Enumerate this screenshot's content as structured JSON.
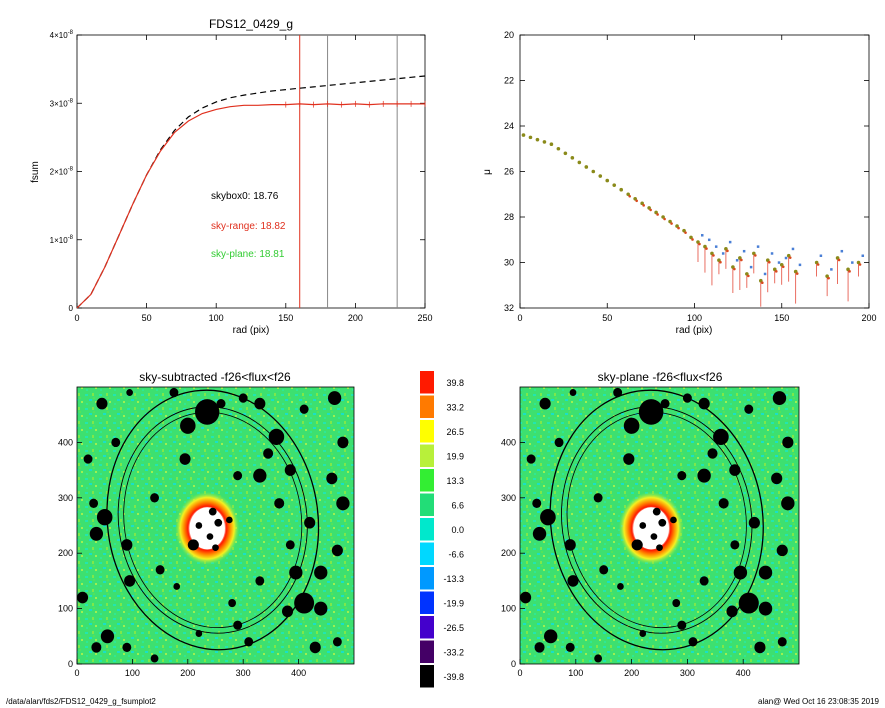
{
  "chart_data": [
    {
      "type": "line",
      "title": "FDS12_0429_g",
      "xlabel": "rad (pix)",
      "ylabel": "fsum",
      "xlim": [
        0,
        250
      ],
      "ylim": [
        0,
        4e-08
      ],
      "xticks": [
        0,
        50,
        100,
        150,
        200,
        250
      ],
      "yticks": [
        {
          "value": 0,
          "mantissa": "0",
          "exp": ""
        },
        {
          "value": 1e-08,
          "mantissa": "1×10",
          "exp": "-8"
        },
        {
          "value": 2e-08,
          "mantissa": "2×10",
          "exp": "-8"
        },
        {
          "value": 3e-08,
          "mantissa": "3×10",
          "exp": "-8"
        },
        {
          "value": 4e-08,
          "mantissa": "4×10",
          "exp": "-8"
        }
      ],
      "grid": false,
      "vlines": [
        {
          "x": 160,
          "color": "#e0301e"
        },
        {
          "x": 180,
          "color": "#888888"
        },
        {
          "x": 230,
          "color": "#888888"
        }
      ],
      "annotations": [
        {
          "text": "skybox0: 18.76",
          "color": "#000000"
        },
        {
          "text": "sky-range: 18.82",
          "color": "#e0301e"
        },
        {
          "text": "sky-plane: 18.81",
          "color": "#33cc33"
        }
      ],
      "series": [
        {
          "style": "dashed",
          "color": "#000000",
          "x": [
            0,
            10,
            20,
            30,
            40,
            50,
            60,
            70,
            80,
            90,
            100,
            110,
            120,
            130,
            140,
            150,
            160,
            170,
            180,
            190,
            200,
            210,
            220,
            230,
            240,
            250
          ],
          "y": [
            0,
            2e-09,
            6e-09,
            1.06e-08,
            1.52e-08,
            1.95e-08,
            2.32e-08,
            2.6e-08,
            2.8e-08,
            2.93e-08,
            3.02e-08,
            3.08e-08,
            3.12e-08,
            3.15e-08,
            3.18e-08,
            3.2e-08,
            3.22e-08,
            3.24e-08,
            3.26e-08,
            3.28e-08,
            3.3e-08,
            3.32e-08,
            3.34e-08,
            3.36e-08,
            3.38e-08,
            3.4e-08
          ]
        },
        {
          "style": "solid",
          "color": "#e0301e",
          "x": [
            0,
            10,
            20,
            30,
            40,
            50,
            60,
            70,
            80,
            90,
            100,
            110,
            120,
            130,
            140,
            150,
            160,
            170,
            180,
            190,
            200,
            210,
            220,
            230,
            240,
            250
          ],
          "y": [
            0,
            2e-09,
            6e-09,
            1.06e-08,
            1.52e-08,
            1.95e-08,
            2.3e-08,
            2.57e-08,
            2.74e-08,
            2.85e-08,
            2.91e-08,
            2.95e-08,
            2.97e-08,
            2.97e-08,
            2.98e-08,
            2.98e-08,
            2.99e-08,
            2.98e-08,
            2.99e-08,
            2.98e-08,
            2.99e-08,
            2.98e-08,
            2.99e-08,
            2.99e-08,
            2.99e-08,
            2.99e-08
          ]
        }
      ]
    },
    {
      "type": "scatter",
      "title": "",
      "xlabel": "rad (pix)",
      "ylabel": "μ",
      "xlim": [
        0,
        200
      ],
      "ylim": [
        32,
        20
      ],
      "xticks": [
        0,
        50,
        100,
        150,
        200
      ],
      "yticks": [
        20,
        22,
        24,
        26,
        28,
        30,
        32
      ],
      "grid": false,
      "series": [
        {
          "color": "#8a8a1a",
          "x": [
            2,
            6,
            10,
            14,
            18,
            22,
            26,
            30,
            34,
            38,
            42,
            46,
            50,
            54,
            58,
            62,
            66,
            70,
            74,
            78,
            82,
            86,
            90,
            94,
            98,
            102,
            106,
            110,
            114,
            118,
            122,
            126,
            130,
            134,
            138,
            142,
            146,
            150,
            154,
            158,
            170,
            176,
            182,
            188,
            194
          ],
          "y": [
            24.4,
            24.5,
            24.6,
            24.7,
            24.8,
            25.0,
            25.2,
            25.4,
            25.6,
            25.8,
            26.0,
            26.2,
            26.4,
            26.6,
            26.8,
            27.0,
            27.2,
            27.4,
            27.6,
            27.8,
            28.0,
            28.2,
            28.4,
            28.6,
            28.9,
            29.1,
            29.3,
            29.6,
            29.9,
            29.4,
            30.2,
            29.8,
            30.5,
            29.6,
            30.8,
            29.9,
            30.3,
            30.1,
            29.7,
            30.4,
            30.0,
            30.6,
            29.8,
            30.3,
            30.0
          ]
        }
      ]
    },
    {
      "type": "heatmap",
      "title": "sky-subtracted -f26<flux<f26",
      "xlim": [
        0,
        500
      ],
      "ylim": [
        0,
        500
      ],
      "xticks": [
        0,
        100,
        200,
        300,
        400
      ],
      "yticks": [
        0,
        100,
        200,
        300,
        400
      ]
    },
    {
      "type": "heatmap",
      "title": "sky-plane -f26<flux<f26",
      "xlim": [
        0,
        500
      ],
      "ylim": [
        0,
        500
      ],
      "xticks": [
        0,
        100,
        200,
        300,
        400
      ],
      "yticks": [
        0,
        100,
        200,
        300,
        400
      ]
    }
  ],
  "colorbar": {
    "labels": [
      "39.8",
      "33.2",
      "26.5",
      "19.9",
      "13.3",
      "6.6",
      "0.0",
      "-6.6",
      "-13.3",
      "-19.9",
      "-26.5",
      "-33.2",
      "-39.8"
    ],
    "colors": [
      "#ff1a00",
      "#ff7a00",
      "#ffff00",
      "#b8f03a",
      "#33ee33",
      "#22dd77",
      "#00e8cc",
      "#00d8ff",
      "#0099ff",
      "#0033ff",
      "#4400cc",
      "#440066",
      "#000000"
    ]
  },
  "footer": {
    "left": "/data/alan/fds2/FDS12_0429_g_fsumplot2",
    "right": "alan@  Wed Oct 16 23:08:35 2019"
  }
}
